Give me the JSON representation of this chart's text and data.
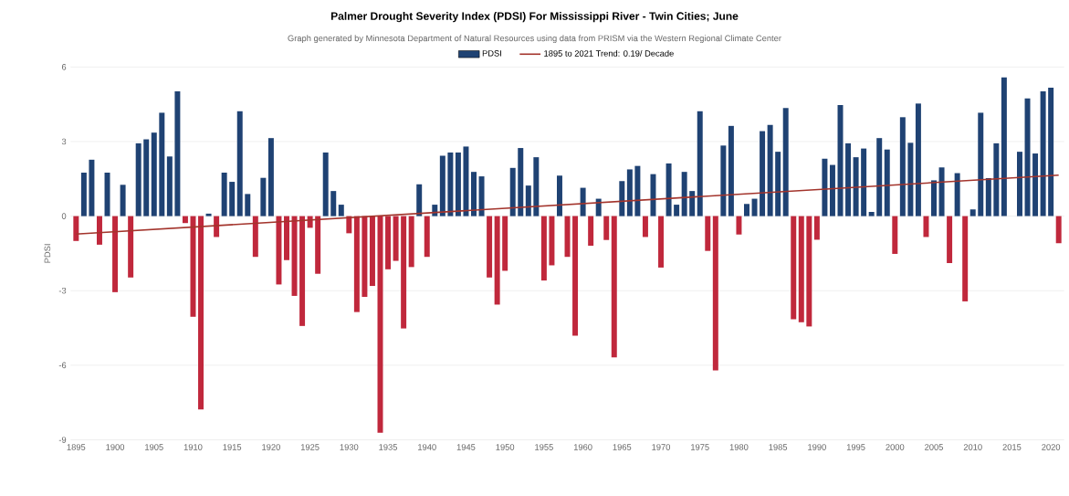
{
  "chart_data": {
    "type": "bar",
    "title": "Palmer Drought Severity Index (PDSI) For Mississippi River - Twin Cities; June",
    "subtitle": "Graph generated by Minnesota Department of Natural Resources using data from PRISM via the Western Regional Climate Center",
    "ylabel": "PDSI",
    "x": [
      1895,
      1896,
      1897,
      1898,
      1899,
      1900,
      1901,
      1902,
      1903,
      1904,
      1905,
      1906,
      1907,
      1908,
      1909,
      1910,
      1911,
      1912,
      1913,
      1914,
      1915,
      1916,
      1917,
      1918,
      1919,
      1920,
      1921,
      1922,
      1923,
      1924,
      1925,
      1926,
      1927,
      1928,
      1929,
      1930,
      1931,
      1932,
      1933,
      1934,
      1935,
      1936,
      1937,
      1938,
      1939,
      1940,
      1941,
      1942,
      1943,
      1944,
      1945,
      1946,
      1947,
      1948,
      1949,
      1950,
      1951,
      1952,
      1953,
      1954,
      1955,
      1956,
      1957,
      1958,
      1959,
      1960,
      1961,
      1962,
      1963,
      1964,
      1965,
      1966,
      1967,
      1968,
      1969,
      1970,
      1971,
      1972,
      1973,
      1974,
      1975,
      1976,
      1977,
      1978,
      1979,
      1980,
      1981,
      1982,
      1983,
      1984,
      1985,
      1986,
      1987,
      1988,
      1989,
      1990,
      1991,
      1992,
      1993,
      1994,
      1995,
      1996,
      1997,
      1998,
      1999,
      2000,
      2001,
      2002,
      2003,
      2004,
      2005,
      2006,
      2007,
      2008,
      2009,
      2010,
      2011,
      2012,
      2013,
      2014,
      2015,
      2016,
      2017,
      2018,
      2019,
      2020,
      2021
    ],
    "series": [
      {
        "name": "PDSI",
        "color": "#1f4273",
        "values": [
          -1.0,
          1.75,
          2.27,
          -1.15,
          1.75,
          -3.06,
          1.26,
          -2.47,
          2.93,
          3.09,
          3.36,
          4.16,
          2.4,
          5.02,
          -0.28,
          -4.05,
          -7.78,
          0.1,
          -0.84,
          1.75,
          1.38,
          4.22,
          0.89,
          -1.64,
          1.54,
          3.14,
          -2.75,
          -1.77,
          -3.21,
          -4.42,
          -0.47,
          -2.32,
          2.56,
          1.01,
          0.46,
          -0.69,
          -3.86,
          -3.25,
          -2.81,
          -8.72,
          -2.14,
          -1.8,
          -4.52,
          -2.05,
          1.28,
          -1.64,
          0.46,
          2.43,
          2.56,
          2.56,
          2.8,
          1.78,
          1.6,
          -2.47,
          -3.56,
          -2.2,
          1.94,
          2.74,
          1.23,
          2.37,
          -2.59,
          -1.98,
          1.63,
          -1.64,
          -4.81,
          1.14,
          -1.19,
          0.7,
          -0.96,
          -5.68,
          1.41,
          1.88,
          2.02,
          -0.84,
          1.69,
          -2.07,
          2.12,
          0.46,
          1.78,
          1.01,
          4.22,
          -1.4,
          -6.21,
          2.84,
          3.63,
          -0.74,
          0.49,
          0.7,
          3.42,
          3.67,
          2.59,
          4.35,
          -4.15,
          -4.27,
          -4.44,
          -0.95,
          2.31,
          2.06,
          4.47,
          2.93,
          2.37,
          2.72,
          0.17,
          3.14,
          2.68,
          -1.52,
          3.98,
          2.95,
          4.53,
          -0.84,
          1.44,
          1.96,
          -1.89,
          1.73,
          -3.43,
          0.27,
          4.16,
          1.53,
          2.93,
          5.58,
          0.0,
          2.59,
          4.74,
          2.52,
          5.02,
          5.17,
          -1.09
        ],
        "colors": [
          "#c0283c",
          "#1f4273",
          "#1f4273",
          "#c0283c",
          "#1f4273",
          "#c0283c",
          "#1f4273",
          "#c0283c",
          "#1f4273",
          "#1f4273",
          "#1f4273",
          "#1f4273",
          "#1f4273",
          "#1f4273",
          "#c0283c",
          "#c0283c",
          "#c0283c",
          "#1f4273",
          "#c0283c",
          "#1f4273",
          "#1f4273",
          "#1f4273",
          "#1f4273",
          "#c0283c",
          "#1f4273",
          "#1f4273",
          "#c0283c",
          "#c0283c",
          "#c0283c",
          "#c0283c",
          "#c0283c",
          "#c0283c",
          "#1f4273",
          "#1f4273",
          "#1f4273",
          "#c0283c",
          "#c0283c",
          "#c0283c",
          "#c0283c",
          "#c0283c",
          "#c0283c",
          "#c0283c",
          "#c0283c",
          "#c0283c",
          "#1f4273",
          "#c0283c",
          "#1f4273",
          "#1f4273",
          "#1f4273",
          "#1f4273",
          "#1f4273",
          "#1f4273",
          "#1f4273",
          "#c0283c",
          "#c0283c",
          "#c0283c",
          "#1f4273",
          "#1f4273",
          "#1f4273",
          "#1f4273",
          "#c0283c",
          "#c0283c",
          "#1f4273",
          "#c0283c",
          "#c0283c",
          "#1f4273",
          "#c0283c",
          "#1f4273",
          "#c0283c",
          "#c0283c",
          "#1f4273",
          "#1f4273",
          "#1f4273",
          "#c0283c",
          "#1f4273",
          "#c0283c",
          "#1f4273",
          "#1f4273",
          "#1f4273",
          "#1f4273",
          "#1f4273",
          "#c0283c",
          "#c0283c",
          "#1f4273",
          "#1f4273",
          "#c0283c",
          "#1f4273",
          "#1f4273",
          "#1f4273",
          "#1f4273",
          "#1f4273",
          "#1f4273",
          "#c0283c",
          "#c0283c",
          "#c0283c",
          "#c0283c",
          "#1f4273",
          "#1f4273",
          "#1f4273",
          "#1f4273",
          "#1f4273",
          "#1f4273",
          "#1f4273",
          "#1f4273",
          "#1f4273",
          "#c0283c",
          "#1f4273",
          "#1f4273",
          "#1f4273",
          "#c0283c",
          "#1f4273",
          "#1f4273",
          "#c0283c",
          "#1f4273",
          "#c0283c",
          "#1f4273",
          "#1f4273",
          "#1f4273",
          "#1f4273",
          "#1f4273",
          "#1f4273",
          "#1f4273",
          "#1f4273",
          "#1f4273",
          "#1f4273",
          "#1f4273",
          "#c0283c"
        ]
      },
      {
        "name": "1895 to 2021 Trend: 0.19/ Decade",
        "type": "line",
        "color": "#a3342c",
        "x": [
          1895,
          2021
        ],
        "values": [
          -0.72,
          1.65
        ]
      }
    ],
    "xlim": [
      1894.3,
      2021.7
    ],
    "xticks": [
      1895,
      1900,
      1905,
      1910,
      1915,
      1920,
      1925,
      1930,
      1935,
      1940,
      1945,
      1950,
      1955,
      1960,
      1965,
      1970,
      1975,
      1980,
      1985,
      1990,
      1995,
      2000,
      2005,
      2010,
      2015,
      2020
    ],
    "ylim": [
      -9,
      6
    ],
    "yticks": [
      -9,
      -6,
      -3,
      0,
      3,
      6
    ],
    "grid": "y",
    "legend": "top"
  }
}
